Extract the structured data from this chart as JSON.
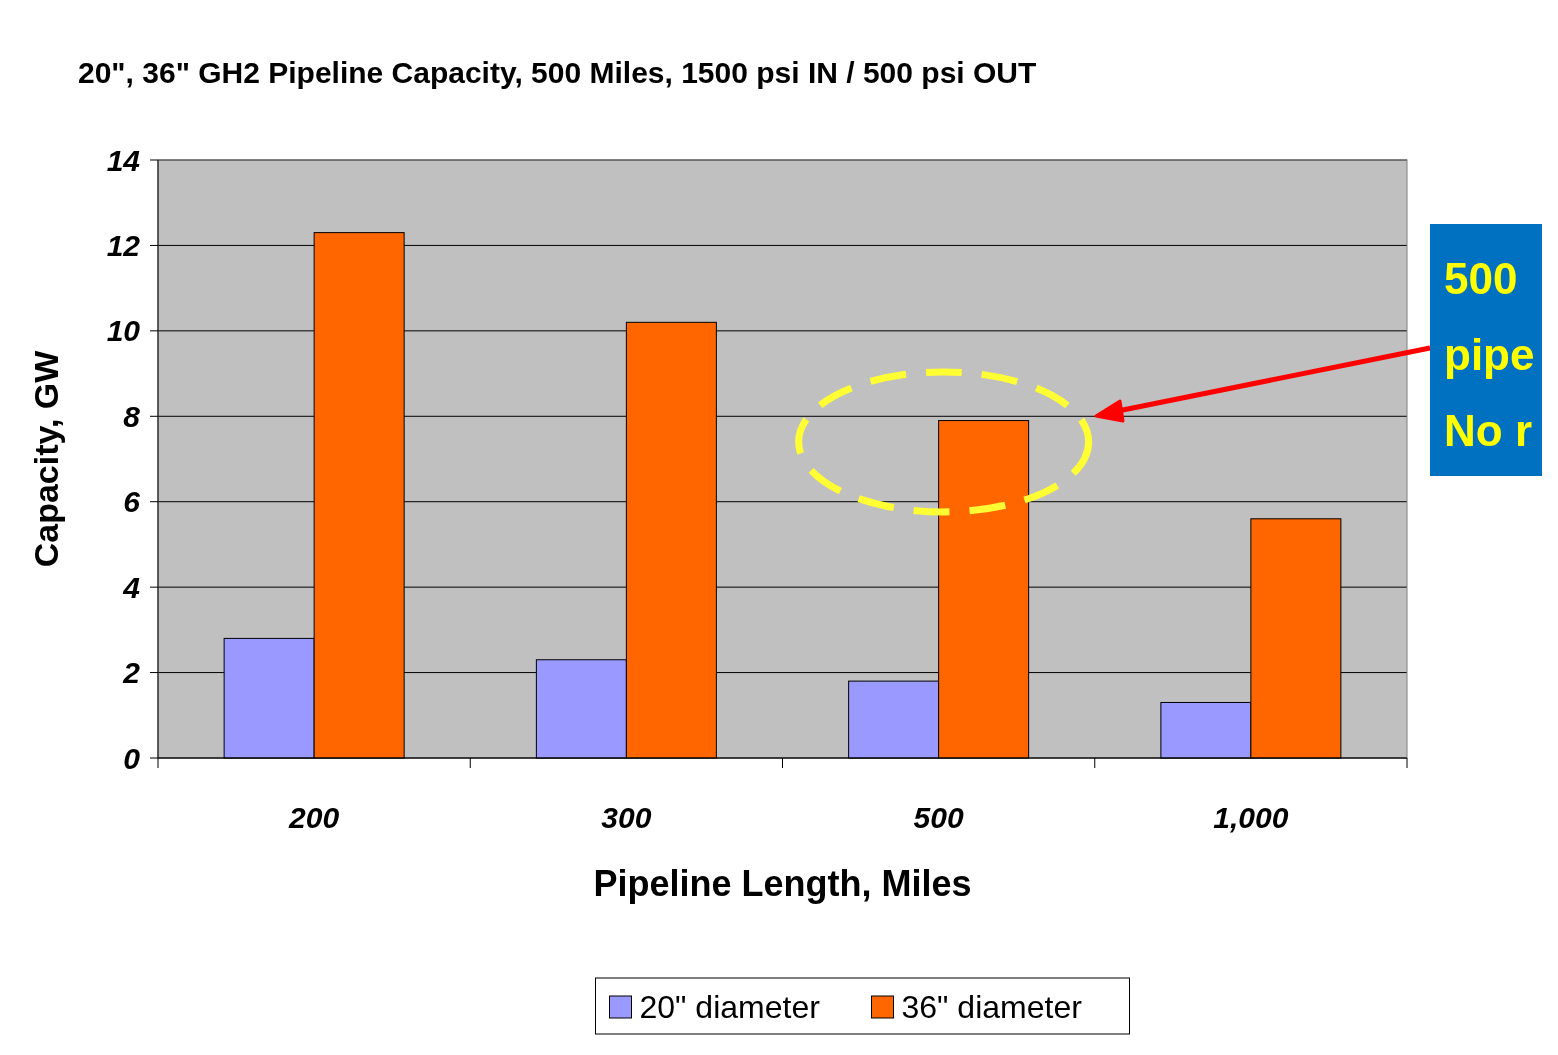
{
  "chart_data": {
    "type": "bar",
    "title": "20\", 36\" GH2 Pipeline Capacity, 500 Miles, 1500 psi IN / 500 psi OUT",
    "xlabel": "Pipeline Length,  Miles",
    "ylabel": "Capacity, GW",
    "categories": [
      "200",
      "300",
      "500",
      "1,000"
    ],
    "series": [
      {
        "name": "20\" diameter",
        "color": "#9999ff",
        "values": [
          2.8,
          2.3,
          1.8,
          1.3
        ]
      },
      {
        "name": "36\" diameter",
        "color": "#ff6600",
        "values": [
          12.3,
          10.2,
          7.9,
          5.6
        ]
      }
    ],
    "ylim": [
      0,
      14
    ],
    "yticks": [
      0,
      2,
      4,
      6,
      8,
      10,
      12,
      14
    ],
    "grid": "y",
    "legend": "bottom",
    "annotations": [
      "500 pipe No r"
    ]
  }
}
